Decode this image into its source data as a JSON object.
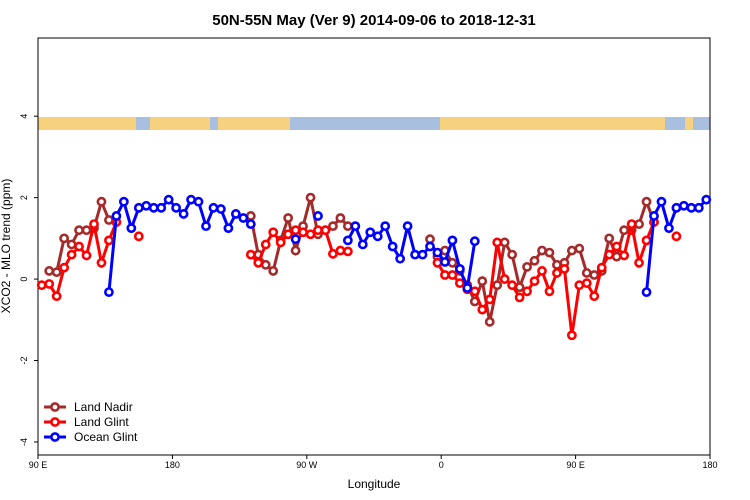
{
  "chart_data": {
    "type": "line",
    "title": "50N-55N May (Ver 9)   2014-09-06 to 2018-12-31",
    "x_label": "Longitude",
    "y_label": "XCO2 - MLO trend (ppm)",
    "xlim": [
      90,
      540
    ],
    "ylim": [
      -4.32,
      5.92
    ],
    "xticks": [
      {
        "value": 90,
        "label": "90 E"
      },
      180,
      {
        "value": 270,
        "label": "90 W"
      },
      {
        "value": 360,
        "label": "0"
      },
      {
        "value": 450,
        "label": "90 E"
      },
      {
        "value": 540,
        "label": "180"
      }
    ],
    "yticks": [
      -4,
      -2,
      0,
      2,
      4
    ],
    "legend": "bottom-left",
    "series": [
      {
        "name": "Land Nadir",
        "color": "#a52a2a",
        "x": [
          97.5,
          102.5,
          107.5,
          112.5,
          117.5,
          122.5,
          127.5,
          132.5,
          137.5,
          142.5,
          147.5,
          232.5,
          237.5,
          242.5,
          247.5,
          252.5,
          257.5,
          262.5,
          267.5,
          272.5,
          277.5,
          282.5,
          287.5,
          292.5,
          297.5,
          302.5,
          352.5,
          357.5,
          362.5,
          367.5,
          372.5,
          377.5,
          382.5,
          387.5,
          392.5,
          397.5,
          402.5,
          407.5,
          412.5,
          417.5,
          422.5,
          427.5,
          432.5,
          437.5,
          442.5,
          447.5,
          452.5,
          457.5,
          462.5,
          467.5,
          472.5,
          477.5,
          482.5,
          487.5,
          492.5,
          497.5,
          502.5
        ],
        "values": [
          0.2,
          0.17,
          1.0,
          0.85,
          1.2,
          1.2,
          1.25,
          1.9,
          1.45,
          1.4,
          null,
          1.55,
          0.6,
          0.35,
          0.2,
          0.95,
          1.5,
          0.7,
          1.3,
          2.0,
          1.1,
          1.2,
          1.3,
          1.5,
          1.3,
          null,
          0.98,
          0.55,
          0.7,
          0.4,
          0.2,
          -0.15,
          -0.55,
          -0.05,
          -1.05,
          -0.15,
          0.9,
          0.6,
          -0.2,
          0.3,
          0.45,
          0.7,
          0.65,
          0.35,
          0.4,
          0.7,
          0.75,
          0.15,
          0.1,
          0.2,
          1.0,
          0.55,
          1.2,
          1.2,
          1.35,
          1.9,
          1.4
        ]
      },
      {
        "name": "Land Glint",
        "color": "#ff0000",
        "x": [
          92.5,
          97.5,
          102.5,
          107.5,
          112.5,
          117.5,
          122.5,
          127.5,
          132.5,
          137.5,
          142.5,
          147.5,
          157.5,
          162.5,
          232.5,
          237.5,
          242.5,
          247.5,
          252.5,
          257.5,
          262.5,
          267.5,
          272.5,
          277.5,
          282.5,
          287.5,
          292.5,
          297.5,
          302.5,
          357.5,
          362.5,
          367.5,
          372.5,
          377.5,
          382.5,
          387.5,
          392.5,
          397.5,
          402.5,
          407.5,
          412.5,
          417.5,
          422.5,
          427.5,
          432.5,
          437.5,
          442.5,
          447.5,
          452.5,
          457.5,
          462.5,
          467.5,
          472.5,
          477.5,
          482.5,
          487.5,
          492.5,
          497.5,
          502.5,
          507.5,
          517.5
        ],
        "values": [
          -0.15,
          -0.12,
          -0.42,
          0.28,
          0.6,
          0.8,
          0.58,
          1.35,
          0.4,
          0.95,
          1.4,
          null,
          1.05,
          null,
          0.6,
          0.4,
          0.85,
          1.15,
          0.9,
          1.1,
          1.2,
          1.15,
          1.1,
          1.2,
          1.2,
          0.62,
          0.7,
          0.68,
          null,
          0.4,
          0.1,
          0.1,
          -0.1,
          -0.25,
          -0.3,
          -0.75,
          -0.5,
          0.9,
          0.0,
          -0.15,
          -0.45,
          -0.3,
          -0.05,
          0.2,
          -0.3,
          0.15,
          0.25,
          -1.38,
          -0.15,
          -0.1,
          -0.42,
          0.28,
          0.6,
          0.8,
          0.58,
          1.35,
          0.4,
          0.95,
          1.4,
          null,
          1.05
        ]
      },
      {
        "name": "Ocean Glint",
        "color": "#0000ff",
        "x": [
          137.5,
          142.5,
          147.5,
          152.5,
          157.5,
          162.5,
          167.5,
          172.5,
          177.5,
          182.5,
          187.5,
          192.5,
          197.5,
          202.5,
          207.5,
          212.5,
          217.5,
          222.5,
          227.5,
          232.5,
          237.5,
          262.5,
          267.5,
          277.5,
          282.5,
          297.5,
          302.5,
          307.5,
          312.5,
          317.5,
          322.5,
          327.5,
          332.5,
          337.5,
          342.5,
          347.5,
          352.5,
          357.5,
          362.5,
          367.5,
          372.5,
          377.5,
          382.5,
          387.5,
          497.5,
          502.5,
          507.5,
          512.5,
          517.5,
          522.5,
          527.5,
          532.5,
          537.5
        ],
        "values": [
          -0.32,
          1.55,
          1.9,
          1.25,
          1.75,
          1.8,
          1.75,
          1.75,
          1.95,
          1.75,
          1.6,
          1.95,
          1.9,
          1.3,
          1.75,
          1.72,
          1.25,
          1.6,
          1.5,
          1.35,
          null,
          0.98,
          null,
          1.55,
          null,
          0.95,
          1.3,
          0.85,
          1.15,
          1.05,
          1.3,
          0.8,
          0.5,
          1.3,
          0.6,
          0.6,
          0.8,
          0.65,
          0.42,
          0.95,
          0.25,
          -0.22,
          0.93,
          null,
          -0.32,
          1.55,
          1.9,
          1.25,
          1.75,
          1.8,
          1.75,
          1.75,
          1.95
        ]
      }
    ]
  }
}
